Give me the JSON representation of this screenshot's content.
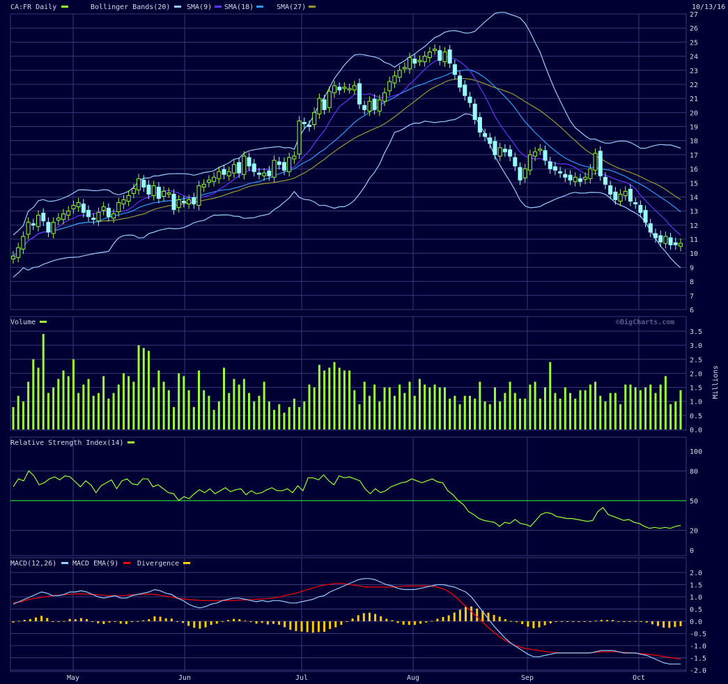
{
  "colors": {
    "background": "#000033",
    "grid": "#3a3a7a",
    "text": "#d8d8e8",
    "candle_up": "#99ff33",
    "candle_down": "#99ffff",
    "bollinger": "#99ccff",
    "sma9": "#6633ff",
    "sma18": "#3399ff",
    "sma27": "#999933",
    "volume": "#99ff33",
    "rsi": "#99ff33",
    "macd": "#99ccff",
    "macd_ema": "#ff0000",
    "divergence": "#ffcc00"
  },
  "price_panel": {
    "legend": [
      {
        "label": "CA:FR Daily",
        "color": "#99ff33"
      },
      {
        "label": "Bollinger Bands(20)",
        "color": "#99ccff"
      },
      {
        "label": "SMA(9)",
        "color": "#6633ff"
      },
      {
        "label": "SMA(18)",
        "color": "#3399ff"
      },
      {
        "label": "SMA(27)",
        "color": "#999933"
      }
    ],
    "date_label": "10/13/16",
    "y_ticks": [
      "27",
      "26",
      "25",
      "24",
      "23",
      "22",
      "21",
      "20",
      "19",
      "18",
      "17",
      "16",
      "15",
      "14",
      "13",
      "12",
      "11",
      "10",
      "9",
      "8",
      "7",
      "6"
    ]
  },
  "volume_panel": {
    "title": "Volume",
    "unit": "Millions",
    "watermark": "©BigCharts.com",
    "y_ticks": [
      "3.5",
      "3.0",
      "2.5",
      "2.0",
      "1.5",
      "1.0",
      "0.5",
      "0.0"
    ]
  },
  "rsi_panel": {
    "title": "Relative Strength Index(14)",
    "y_ticks": [
      "100",
      "80",
      "50",
      "20",
      "0"
    ]
  },
  "macd_panel": {
    "legend": [
      {
        "label": "MACD(12,26)",
        "color": "#99ccff"
      },
      {
        "label": "MACD EMA(9)",
        "color": "#ff0000"
      },
      {
        "label": "Divergence",
        "color": "#ffcc00"
      }
    ],
    "y_ticks": [
      "2.0",
      "1.5",
      "1.0",
      "0.5",
      "0.0",
      "-0.5",
      "-1.0",
      "-1.5",
      "-2.0"
    ]
  },
  "x_axis": {
    "month_labels": [
      "May",
      "Jun",
      "Jul",
      "Aug",
      "Sep",
      "Oct"
    ]
  },
  "chart_data": {
    "type": "candlestick",
    "title": "CA:FR Daily",
    "date_range_end": "10/13/16",
    "price_ylim": [
      6,
      27
    ],
    "volume_ylim": [
      0,
      3.5
    ],
    "rsi_ylim": [
      0,
      100
    ],
    "macd_ylim": [
      -2,
      2
    ],
    "rsi_reference": 50,
    "grid": true,
    "close": [
      9.8,
      10.4,
      11.2,
      12.2,
      12.0,
      12.7,
      12.3,
      11.5,
      12.2,
      12.5,
      12.8,
      13.0,
      13.4,
      13.6,
      12.9,
      12.6,
      12.4,
      12.9,
      13.3,
      12.6,
      12.8,
      13.6,
      13.8,
      14.1,
      14.6,
      15.3,
      14.7,
      14.2,
      14.8,
      13.9,
      14.4,
      14.3,
      13.1,
      13.8,
      13.6,
      13.8,
      13.5,
      14.8,
      14.9,
      15.2,
      15.4,
      15.8,
      15.6,
      15.8,
      16.3,
      15.7,
      16.9,
      16.2,
      15.8,
      15.6,
      15.7,
      15.5,
      16.6,
      16.3,
      15.9,
      16.8,
      16.9,
      19.4,
      19.2,
      19.0,
      20.0,
      21.0,
      20.2,
      21.5,
      21.9,
      21.6,
      21.8,
      21.7,
      21.9,
      20.6,
      20.2,
      20.8,
      20.2,
      20.9,
      21.4,
      22.2,
      22.6,
      23.0,
      23.2,
      23.9,
      23.5,
      23.7,
      24.0,
      24.3,
      24.5,
      23.7,
      24.3,
      23.5,
      22.7,
      21.8,
      21.2,
      20.7,
      19.5,
      18.6,
      18.3,
      17.8,
      17.0,
      17.5,
      17.2,
      16.9,
      16.2,
      15.2,
      16.0,
      17.0,
      17.2,
      17.4,
      16.6,
      16.0,
      15.9,
      15.7,
      15.4,
      15.2,
      15.4,
      15.1,
      15.4,
      16.0,
      17.1,
      15.5,
      14.9,
      14.2,
      13.8,
      14.2,
      14.4,
      13.7,
      13.5,
      12.9,
      12.2,
      11.5,
      11.1,
      10.8,
      11.2,
      10.6,
      10.6,
      10.7
    ],
    "volume": [
      0.8,
      1.2,
      1.0,
      1.7,
      2.5,
      2.2,
      3.4,
      1.3,
      1.5,
      1.8,
      2.1,
      1.9,
      2.5,
      1.3,
      1.6,
      1.8,
      1.2,
      1.3,
      1.9,
      1.1,
      1.3,
      1.6,
      2.0,
      1.9,
      1.7,
      3.0,
      2.9,
      2.8,
      1.5,
      2.1,
      1.7,
      1.4,
      0.8,
      2.0,
      1.9,
      1.4,
      0.8,
      2.1,
      1.4,
      1.2,
      0.7,
      1.0,
      2.2,
      1.3,
      1.8,
      1.6,
      1.8,
      1.3,
      1.0,
      1.2,
      1.7,
      1.0,
      0.7,
      0.9,
      0.6,
      0.8,
      1.1,
      0.8,
      1.0,
      1.6,
      1.5,
      2.3,
      2.1,
      2.2,
      2.4,
      2.2,
      2.1,
      2.1,
      1.4,
      0.9,
      1.7,
      1.2,
      1.6,
      1.0,
      1.5,
      1.5,
      1.2,
      1.6,
      1.3,
      1.7,
      1.2,
      1.8,
      1.6,
      1.5,
      1.6,
      1.5,
      1.5,
      1.1,
      1.2,
      0.9,
      1.2,
      1.2,
      1.1,
      1.7,
      1.0,
      0.9,
      1.5,
      1.0,
      1.3,
      1.7,
      1.3,
      1.1,
      1.1,
      1.6,
      1.7,
      1.1,
      1.5,
      2.4,
      1.3,
      1.1,
      1.5,
      1.3,
      1.1,
      1.4,
      1.4,
      1.6,
      1.7,
      1.2,
      1.0,
      1.3,
      1.3,
      0.9,
      1.6,
      1.6,
      1.5,
      1.4,
      1.5,
      1.6,
      1.3,
      1.6,
      1.9,
      0.9,
      1.0,
      1.4
    ],
    "rsi": [
      64,
      72,
      70,
      80,
      75,
      66,
      68,
      72,
      74,
      71,
      75,
      74,
      69,
      64,
      70,
      66,
      58,
      65,
      68,
      71,
      62,
      70,
      72,
      67,
      66,
      72,
      72,
      64,
      66,
      62,
      58,
      57,
      50,
      54,
      52,
      57,
      61,
      58,
      62,
      57,
      60,
      63,
      59,
      61,
      62,
      56,
      60,
      57,
      58,
      61,
      63,
      60,
      60,
      62,
      58,
      65,
      60,
      73,
      73,
      71,
      76,
      70,
      66,
      75,
      73,
      74,
      72,
      70,
      62,
      57,
      62,
      58,
      60,
      64,
      66,
      68,
      69,
      72,
      70,
      68,
      70,
      72,
      69,
      68,
      60,
      56,
      50,
      46,
      39,
      36,
      32,
      30,
      29,
      28,
      24,
      28,
      27,
      31,
      27,
      26,
      24,
      30,
      36,
      38,
      37,
      34,
      33,
      32,
      32,
      31,
      30,
      29,
      30,
      39,
      43,
      36,
      34,
      32,
      30,
      31,
      28,
      27,
      24,
      22,
      23,
      22,
      23,
      22,
      24,
      25
    ],
    "macd": [
      0.7,
      0.8,
      0.9,
      1.0,
      1.1,
      1.2,
      1.15,
      1.05,
      1.05,
      1.1,
      1.2,
      1.2,
      1.25,
      1.2,
      1.1,
      1.0,
      0.95,
      1.0,
      1.05,
      0.95,
      0.95,
      1.05,
      1.1,
      1.15,
      1.2,
      1.3,
      1.25,
      1.15,
      1.1,
      0.95,
      0.85,
      0.7,
      0.6,
      0.55,
      0.6,
      0.7,
      0.75,
      0.85,
      0.9,
      0.95,
      0.95,
      0.9,
      0.85,
      0.8,
      0.85,
      0.8,
      0.85,
      0.85,
      0.8,
      0.75,
      0.75,
      0.8,
      0.85,
      0.9,
      1.0,
      1.05,
      1.2,
      1.3,
      1.4,
      1.5,
      1.6,
      1.7,
      1.75,
      1.75,
      1.7,
      1.6,
      1.5,
      1.45,
      1.35,
      1.3,
      1.3,
      1.3,
      1.35,
      1.4,
      1.45,
      1.5,
      1.5,
      1.45,
      1.4,
      1.3,
      1.2,
      1.0,
      0.7,
      0.4,
      0.1,
      -0.2,
      -0.45,
      -0.7,
      -0.9,
      -1.05,
      -1.2,
      -1.35,
      -1.45,
      -1.45,
      -1.4,
      -1.35,
      -1.3,
      -1.3,
      -1.3,
      -1.3,
      -1.3,
      -1.3,
      -1.3,
      -1.25,
      -1.2,
      -1.2,
      -1.2,
      -1.25,
      -1.3,
      -1.3,
      -1.3,
      -1.35,
      -1.4,
      -1.5,
      -1.6,
      -1.7,
      -1.75,
      -1.75,
      -1.75
    ],
    "macd_ema": [
      0.75,
      0.8,
      0.9,
      0.95,
      1.0,
      1.05,
      1.08,
      1.1,
      1.12,
      1.12,
      1.1,
      1.08,
      1.05,
      1.05,
      1.05,
      1.08,
      1.1,
      1.12,
      1.1,
      1.05,
      1.0,
      0.95,
      0.9,
      0.87,
      0.85,
      0.85,
      0.85,
      0.85,
      0.85,
      0.87,
      0.88,
      0.9,
      0.92,
      0.95,
      1.0,
      1.08,
      1.15,
      1.25,
      1.35,
      1.45,
      1.5,
      1.55,
      1.55,
      1.5,
      1.45,
      1.4,
      1.4,
      1.4,
      1.4,
      1.42,
      1.45,
      1.45,
      1.45,
      1.45,
      1.4,
      1.3,
      1.1,
      0.8,
      0.5,
      0.2,
      -0.1,
      -0.4,
      -0.65,
      -0.85,
      -1.0,
      -1.1,
      -1.15,
      -1.2,
      -1.25,
      -1.28,
      -1.3,
      -1.3,
      -1.3,
      -1.3,
      -1.28,
      -1.25,
      -1.25,
      -1.25,
      -1.28,
      -1.3,
      -1.33,
      -1.36,
      -1.4,
      -1.45,
      -1.5,
      -1.55
    ]
  }
}
